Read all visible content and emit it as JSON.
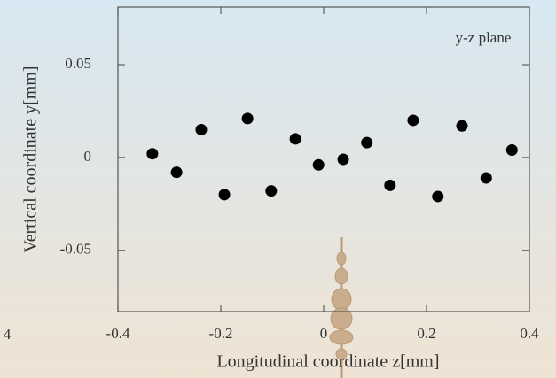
{
  "chart_data": {
    "type": "scatter",
    "annotation": "y-z plane",
    "edge_text": "4",
    "x_label": "Longitudinal coordinate  z[mm]",
    "y_label": "Vertical coordinate  y[mm]",
    "series": [
      {
        "color": "#000000",
        "x": [
          -0.333,
          -0.286,
          -0.238,
          -0.193,
          -0.148,
          -0.102,
          -0.055,
          -0.01,
          0.038,
          0.084,
          0.129,
          0.174,
          0.222,
          0.269,
          0.316,
          0.366
        ],
        "values": [
          0.002,
          -0.008,
          0.015,
          -0.02,
          0.021,
          -0.018,
          0.01,
          -0.004,
          -0.001,
          0.008,
          -0.015,
          0.02,
          -0.021,
          0.017,
          -0.011,
          0.004
        ]
      }
    ],
    "xlim": [
      -0.4,
      0.4
    ],
    "xticks": [
      -0.4,
      -0.2,
      0,
      0.2,
      0.4
    ],
    "ylim": [
      -0.083,
      0.081
    ],
    "yticks": [
      -0.05,
      0,
      0.05
    ]
  }
}
